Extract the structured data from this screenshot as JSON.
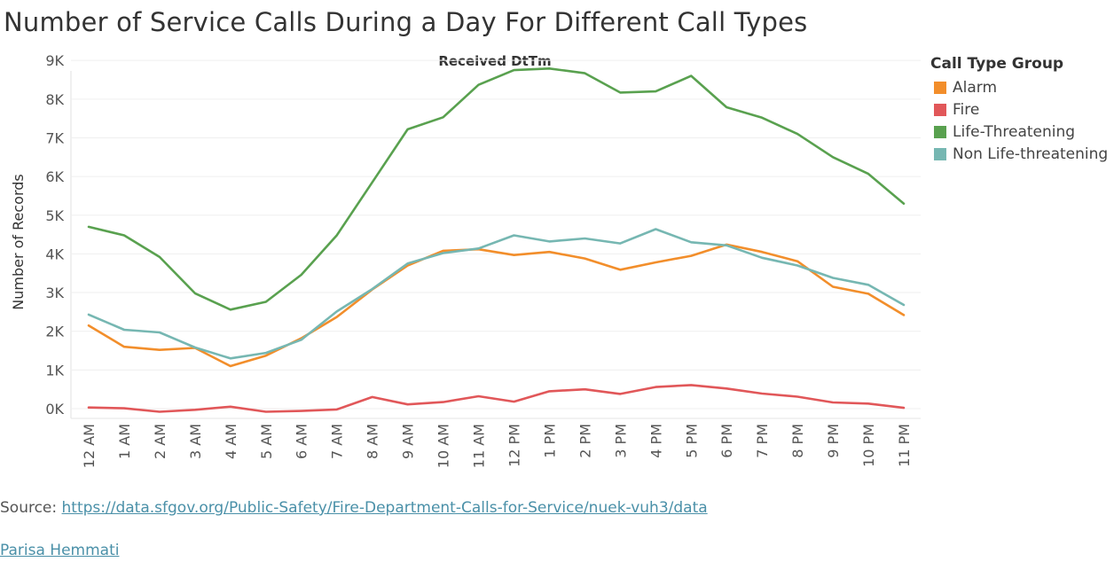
{
  "title": "Number of Service Calls During a Day For Different Call Types",
  "source_label": "Source: ",
  "source_link": "https://data.sfgov.org/Public-Safety/Fire-Department-Calls-for-Service/nuek-vuh3/data",
  "author": "Parisa Hemmati",
  "legend": {
    "title": "Call Type Group",
    "items": [
      {
        "label": "Alarm",
        "color": "#f28e2b"
      },
      {
        "label": "Fire",
        "color": "#e15759"
      },
      {
        "label": "Life-Threatening",
        "color": "#59a14f"
      },
      {
        "label": "Non Life-threatening",
        "color": "#76b7b2"
      }
    ]
  },
  "chart_data": {
    "type": "line",
    "title": "Received DtTm",
    "xlabel": "",
    "ylabel": "Number of Records",
    "ylim": [
      0,
      9000
    ],
    "yticks": [
      "0K",
      "1K",
      "2K",
      "3K",
      "4K",
      "5K",
      "6K",
      "7K",
      "8K",
      "9K"
    ],
    "categories": [
      "12 AM",
      "1 AM",
      "2 AM",
      "3 AM",
      "4 AM",
      "5 AM",
      "6 AM",
      "7 AM",
      "8 AM",
      "9 AM",
      "10 AM",
      "11 AM",
      "12 PM",
      "1 PM",
      "2 PM",
      "3 PM",
      "4 PM",
      "5 PM",
      "6 PM",
      "7 PM",
      "8 PM",
      "9 PM",
      "10 PM",
      "11 PM"
    ],
    "grid": true,
    "legend_position": "right",
    "series": [
      {
        "name": "Alarm",
        "color": "#f28e2b",
        "values": [
          2150,
          1600,
          1520,
          1570,
          1100,
          1370,
          1820,
          2370,
          3080,
          3700,
          4080,
          4120,
          3970,
          4050,
          3880,
          3590,
          3780,
          3950,
          4240,
          4050,
          3810,
          3150,
          2970,
          2420
        ]
      },
      {
        "name": "Fire",
        "color": "#e15759",
        "values": [
          30,
          10,
          -80,
          -30,
          50,
          -80,
          -60,
          -20,
          300,
          110,
          170,
          320,
          180,
          450,
          500,
          380,
          560,
          610,
          520,
          390,
          310,
          160,
          130,
          20
        ]
      },
      {
        "name": "Life-Threatening",
        "color": "#59a14f",
        "values": [
          4700,
          4480,
          3920,
          2980,
          2560,
          2760,
          3460,
          4480,
          5850,
          7220,
          7530,
          8370,
          8750,
          8790,
          8670,
          8170,
          8200,
          8600,
          7790,
          7520,
          7100,
          6500,
          6070,
          5300
        ]
      },
      {
        "name": "Non Life-threatening",
        "color": "#76b7b2",
        "values": [
          2430,
          2040,
          1970,
          1580,
          1300,
          1440,
          1780,
          2510,
          3090,
          3750,
          4020,
          4140,
          4480,
          4320,
          4400,
          4270,
          4640,
          4300,
          4220,
          3900,
          3700,
          3380,
          3200,
          2680
        ]
      }
    ]
  }
}
